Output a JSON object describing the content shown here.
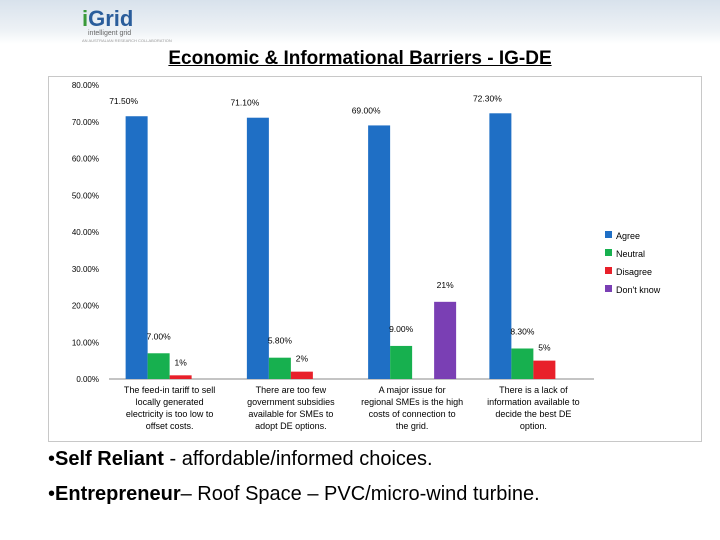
{
  "logo": {
    "brand_prefix": "i",
    "brand_suffix": "Grid",
    "tagline": "intelligent grid",
    "subtext": "AN AUSTRALIAN RESEARCH COLLABORATION"
  },
  "title": "Economic & Informational Barriers - IG-DE",
  "bullets": [
    {
      "bold": "Self Reliant",
      "rest": " - affordable/informed choices."
    },
    {
      "bold": "Entrepreneur",
      "rest": "– Roof Space – PVC/micro-wind turbine."
    }
  ],
  "chart_data": {
    "type": "bar",
    "ylim": [
      0,
      80
    ],
    "yticks": [
      "0.00%",
      "10.00%",
      "20.00%",
      "30.00%",
      "40.00%",
      "50.00%",
      "60.00%",
      "70.00%",
      "80.00%"
    ],
    "categories": [
      [
        "The feed-in tariff to sell",
        "locally generated",
        "electricity is too low to",
        "offset costs."
      ],
      [
        "There are too few",
        "government subsidies",
        "available for SMEs to",
        "adopt DE options."
      ],
      [
        "A major issue for",
        "regional SMEs is the high",
        "costs of connection to",
        "the grid."
      ],
      [
        "There is a lack of",
        "information available to",
        "decide the best DE",
        "option."
      ]
    ],
    "series": [
      {
        "name": "Agree",
        "color": "#1f6fc5",
        "values": [
          71.5,
          71.1,
          69.0,
          72.3
        ],
        "labels": [
          "71.50%",
          "71.10%",
          "69.00%",
          "72.30%"
        ]
      },
      {
        "name": "Neutral",
        "color": "#17b04f",
        "values": [
          7.0,
          5.8,
          9.0,
          8.3
        ],
        "labels": [
          "7.00%",
          "5.80%",
          "9.00%",
          "8.30%"
        ]
      },
      {
        "name": "Disagree",
        "color": "#e8202a",
        "values": [
          1,
          2,
          0,
          5
        ],
        "labels": [
          "1%",
          "2%",
          "",
          "5%"
        ]
      },
      {
        "name": "Don't know",
        "color": "#7a3fb4",
        "values": [
          0,
          0,
          21,
          0
        ],
        "labels": [
          "",
          "",
          "21%",
          ""
        ]
      }
    ],
    "legend_position": "right",
    "grid": false
  }
}
